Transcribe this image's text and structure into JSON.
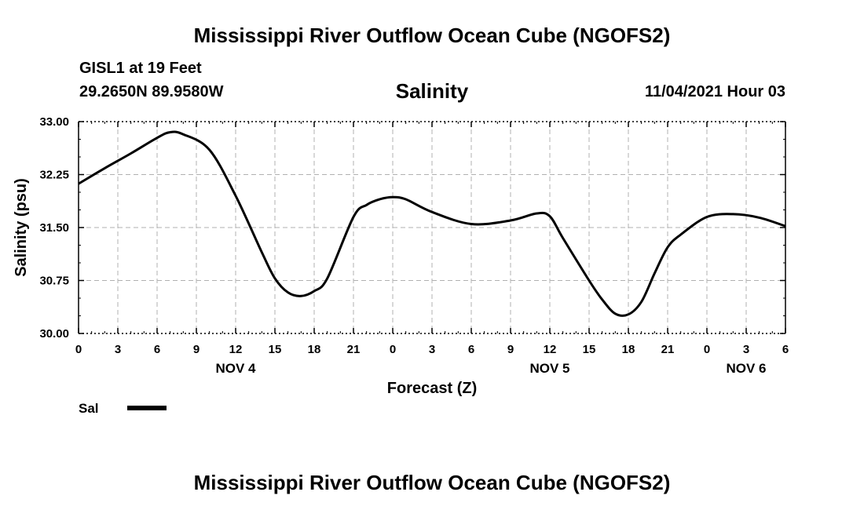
{
  "header": {
    "title": "Mississippi River Outflow Ocean Cube (NGOFS2)",
    "station": "GISL1 at 19 Feet",
    "coordinates": "29.2650N  89.9580W",
    "variable": "Salinity",
    "datetime": "11/04/2021 Hour 03"
  },
  "footer": {
    "title": "Mississippi River Outflow Ocean Cube (NGOFS2)"
  },
  "chart_data": {
    "type": "line",
    "title": "Salinity",
    "xlabel": "Forecast (Z)",
    "ylabel": "Salinity (psu)",
    "ylim": [
      30.0,
      33.0
    ],
    "xlim": [
      "2021-11-04 00:00",
      "2021-11-06 06:00"
    ],
    "y_ticks": [
      "30.00",
      "30.75",
      "31.50",
      "32.25",
      "33.00"
    ],
    "x_tick_labels": [
      "0",
      "3",
      "6",
      "9",
      "12",
      "15",
      "18",
      "21",
      "0",
      "3",
      "6",
      "9",
      "12",
      "15",
      "18",
      "21",
      "0",
      "3",
      "6"
    ],
    "date_labels": [
      {
        "date": "2021-11-04 12:00",
        "label": "NOV 4"
      },
      {
        "date": "2021-11-05 12:00",
        "label": "NOV 5"
      },
      {
        "date": "2021-11-06 03:00",
        "label": "NOV 6"
      }
    ],
    "grid": true,
    "legend": {
      "placement": "bottom-left",
      "label": "Sal"
    },
    "series": [
      {
        "name": "Sal",
        "color": "#000000",
        "x": [
          "2021-11-04 00:00",
          "2021-11-04 02:00",
          "2021-11-04 04:00",
          "2021-11-04 06:00",
          "2021-11-04 07:00",
          "2021-11-04 08:00",
          "2021-11-04 10:00",
          "2021-11-04 12:00",
          "2021-11-04 14:00",
          "2021-11-04 15:00",
          "2021-11-04 16:00",
          "2021-11-04 17:00",
          "2021-11-04 18:00",
          "2021-11-04 19:00",
          "2021-11-04 21:00",
          "2021-11-04 22:00",
          "2021-11-04 23:00",
          "2021-11-05 00:00",
          "2021-11-05 01:00",
          "2021-11-05 03:00",
          "2021-11-05 06:00",
          "2021-11-05 09:00",
          "2021-11-05 11:00",
          "2021-11-05 12:00",
          "2021-11-05 13:00",
          "2021-11-05 15:00",
          "2021-11-05 16:00",
          "2021-11-05 17:00",
          "2021-11-05 18:00",
          "2021-11-05 19:00",
          "2021-11-05 20:00",
          "2021-11-05 21:00",
          "2021-11-05 22:00",
          "2021-11-06 00:00",
          "2021-11-06 02:00",
          "2021-11-06 04:00",
          "2021-11-06 06:00"
        ],
        "values": [
          32.12,
          32.34,
          32.55,
          32.77,
          32.85,
          32.82,
          32.6,
          31.95,
          31.15,
          30.78,
          30.58,
          30.53,
          30.6,
          30.78,
          31.65,
          31.82,
          31.9,
          31.93,
          31.9,
          31.72,
          31.55,
          31.6,
          31.7,
          31.66,
          31.35,
          30.75,
          30.48,
          30.28,
          30.27,
          30.45,
          30.85,
          31.22,
          31.4,
          31.65,
          31.69,
          31.64,
          31.52
        ]
      }
    ]
  }
}
